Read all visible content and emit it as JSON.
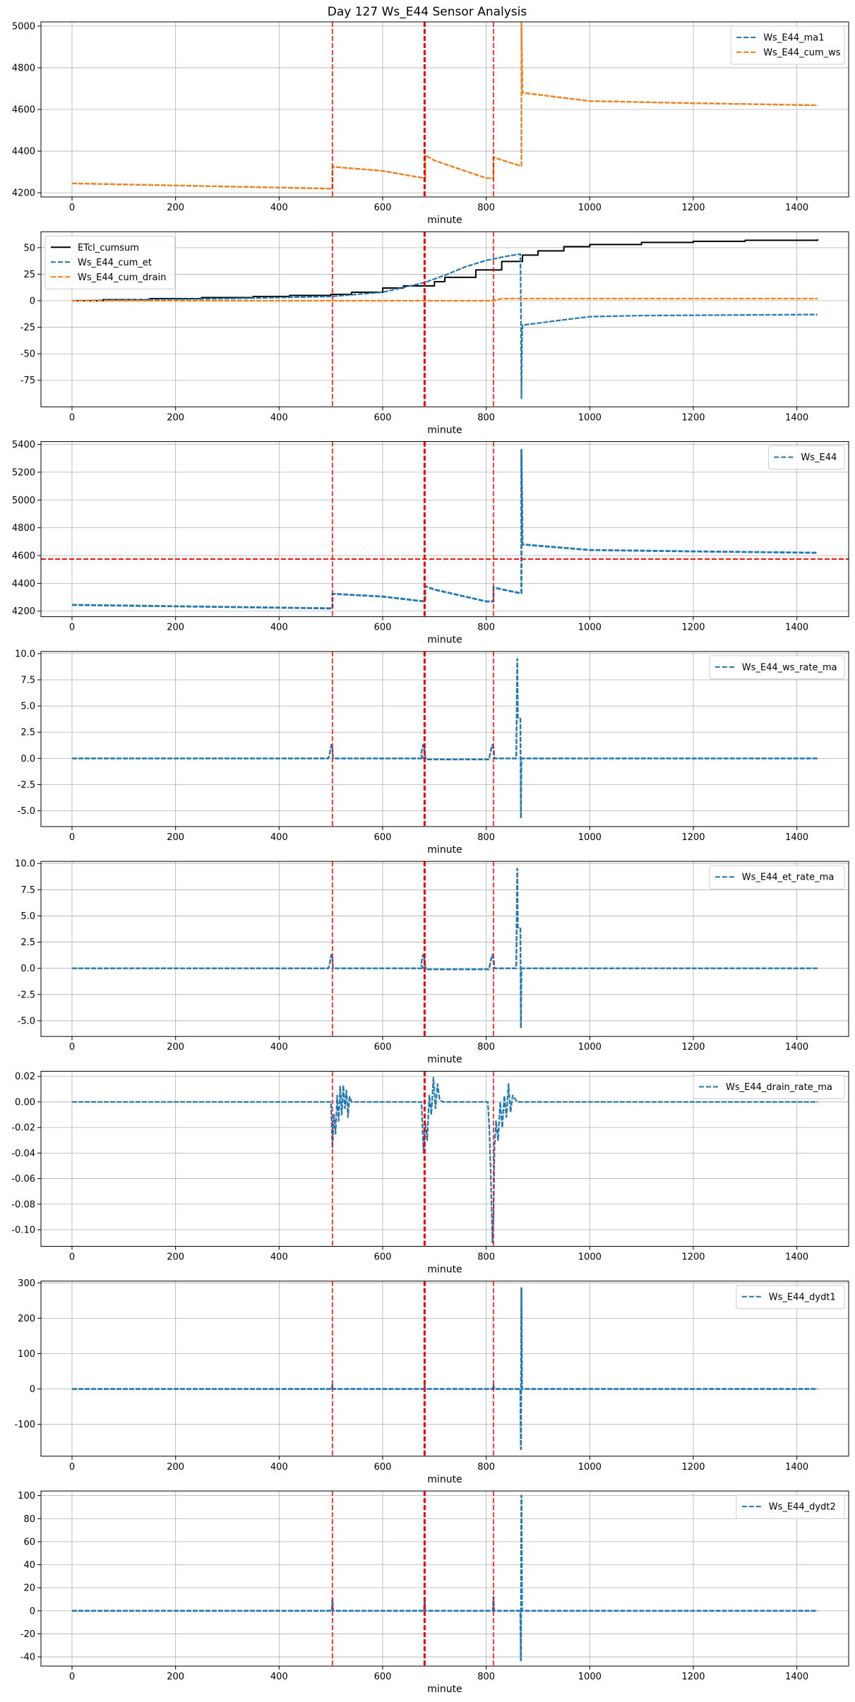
{
  "figure": {
    "title": "Day 127 Ws_E44 Sensor Analysis"
  },
  "colors": {
    "blue": "#1f77b4",
    "orange": "#ff7f0e",
    "black": "#000000",
    "red": "#ff0000",
    "grid": "#b0b0b0"
  },
  "vlines": [
    {
      "x": 503,
      "width": 1.5
    },
    {
      "x": 680,
      "width": 1.5
    },
    {
      "x": 681,
      "width": 1.5
    },
    {
      "x": 682,
      "width": 1.5
    },
    {
      "x": 814,
      "width": 1.5
    }
  ],
  "chart_data": [
    {
      "type": "line",
      "title": "",
      "xlabel": "minute",
      "ylabel": "",
      "xlim": [
        -60,
        1500
      ],
      "ylim": [
        4180,
        5020
      ],
      "xticks": [
        0,
        200,
        400,
        600,
        800,
        1000,
        1200,
        1400
      ],
      "yticks": [
        4200,
        4400,
        4600,
        4800,
        5000
      ],
      "yticklabels": [
        "4200",
        "4400",
        "4600",
        "4800",
        "5000"
      ],
      "legend": "top-right",
      "series": [
        {
          "name": "Ws_E44_ma1",
          "color": "blue",
          "dashed": true,
          "width": 2.2,
          "x": [
            0,
            200,
            400,
            500,
            503,
            503,
            600,
            680,
            682,
            682,
            700,
            800,
            814,
            814,
            865,
            868,
            868,
            870,
            1000,
            1200,
            1440
          ],
          "y": [
            4245,
            4235,
            4225,
            4220,
            4220,
            4325,
            4305,
            4270,
            4270,
            4380,
            4355,
            4270,
            4270,
            4370,
            4330,
            4330,
            5015,
            4680,
            4640,
            4630,
            4620
          ]
        },
        {
          "name": "Ws_E44_cum_ws",
          "color": "orange",
          "dashed": true,
          "width": 2.2,
          "x": [
            0,
            200,
            400,
            500,
            503,
            503,
            600,
            680,
            682,
            682,
            700,
            800,
            814,
            814,
            865,
            868,
            868,
            870,
            1000,
            1200,
            1440
          ],
          "y": [
            4245,
            4235,
            4225,
            4220,
            4220,
            4325,
            4305,
            4270,
            4270,
            4380,
            4355,
            4270,
            4270,
            4370,
            4330,
            4330,
            5015,
            4680,
            4640,
            4630,
            4620
          ]
        }
      ]
    },
    {
      "type": "line",
      "title": "",
      "xlabel": "minute",
      "ylabel": "",
      "xlim": [
        -60,
        1500
      ],
      "ylim": [
        -100,
        65
      ],
      "xticks": [
        0,
        200,
        400,
        600,
        800,
        1000,
        1200,
        1400
      ],
      "yticks": [
        -75,
        -50,
        -25,
        0,
        25,
        50
      ],
      "yticklabels": [
        "-75",
        "-50",
        "-25",
        "0",
        "25",
        "50"
      ],
      "legend": "top-left",
      "series": [
        {
          "name": "ETcl_cumsum",
          "color": "black",
          "dashed": false,
          "width": 2,
          "step": true,
          "x": [
            0,
            60,
            150,
            250,
            350,
            420,
            500,
            540,
            600,
            640,
            700,
            720,
            780,
            830,
            870,
            900,
            950,
            1000,
            1100,
            1200,
            1300,
            1440
          ],
          "y": [
            0,
            1,
            2,
            3,
            4,
            5,
            6,
            8,
            12,
            14,
            18,
            22,
            29,
            37,
            43,
            47,
            51,
            53,
            55,
            56,
            57,
            58
          ]
        },
        {
          "name": "Ws_E44_cum_et",
          "color": "blue",
          "dashed": true,
          "width": 2.2,
          "x": [
            0,
            300,
            500,
            600,
            680,
            720,
            760,
            800,
            840,
            866,
            867,
            868,
            869,
            870,
            950,
            1000,
            1100,
            1440
          ],
          "y": [
            0,
            2,
            4,
            8,
            17,
            24,
            32,
            38,
            42,
            44,
            -5,
            -92,
            -40,
            -23,
            -18,
            -15,
            -14,
            -13
          ]
        },
        {
          "name": "Ws_E44_cum_drain",
          "color": "orange",
          "dashed": true,
          "width": 2.2,
          "x": [
            0,
            500,
            700,
            814,
            830,
            870,
            1440
          ],
          "y": [
            0,
            0,
            0,
            0,
            2,
            2,
            2
          ]
        }
      ]
    },
    {
      "type": "line",
      "title": "",
      "xlabel": "minute",
      "ylabel": "",
      "xlim": [
        -60,
        1500
      ],
      "ylim": [
        4160,
        5420
      ],
      "xticks": [
        0,
        200,
        400,
        600,
        800,
        1000,
        1200,
        1400
      ],
      "yticks": [
        4200,
        4400,
        4600,
        4800,
        5000,
        5200,
        5400
      ],
      "yticklabels": [
        "4200",
        "4400",
        "4600",
        "4800",
        "5000",
        "5200",
        "5400"
      ],
      "hline": 4575,
      "legend": "top-right",
      "series": [
        {
          "name": "Ws_E44",
          "color": "blue",
          "dashed": true,
          "width": 2.8,
          "x": [
            0,
            200,
            400,
            500,
            503,
            503,
            600,
            680,
            682,
            682,
            700,
            800,
            814,
            814,
            865,
            868,
            868,
            870,
            1000,
            1200,
            1440
          ],
          "y": [
            4245,
            4235,
            4225,
            4220,
            4220,
            4325,
            4305,
            4270,
            4270,
            4380,
            4355,
            4270,
            4270,
            4370,
            4330,
            4330,
            5360,
            4680,
            4640,
            4630,
            4620
          ]
        }
      ]
    },
    {
      "type": "line",
      "title": "",
      "xlabel": "minute",
      "ylabel": "",
      "xlim": [
        -60,
        1500
      ],
      "ylim": [
        -6.5,
        10.2
      ],
      "xticks": [
        0,
        200,
        400,
        600,
        800,
        1000,
        1200,
        1400
      ],
      "yticks": [
        -5.0,
        -2.5,
        0.0,
        2.5,
        5.0,
        7.5,
        10.0
      ],
      "yticklabels": [
        "-5.0",
        "-2.5",
        "0.0",
        "2.5",
        "5.0",
        "7.5",
        "10.0"
      ],
      "legend": "top-right",
      "series": [
        {
          "name": "Ws_E44_ws_rate_ma",
          "color": "blue",
          "dashed": true,
          "width": 2.4,
          "x": [
            0,
            495,
            497,
            499,
            501,
            503,
            504,
            680,
            674,
            676,
            678,
            680,
            683,
            805,
            808,
            810,
            812,
            814,
            816,
            858,
            860,
            861,
            862,
            864,
            866,
            867,
            868,
            1440
          ],
          "y": [
            0,
            0,
            0.3,
            0.8,
            1.3,
            1.0,
            0,
            0,
            0.3,
            0.8,
            1.3,
            1.0,
            -0.1,
            -0.1,
            0.5,
            1.0,
            1.3,
            1.0,
            0,
            0,
            9.5,
            4,
            3.8,
            3.8,
            3.8,
            -5.7,
            0,
            0
          ]
        }
      ]
    },
    {
      "type": "line",
      "title": "",
      "xlabel": "minute",
      "ylabel": "",
      "xlim": [
        -60,
        1500
      ],
      "ylim": [
        -6.5,
        10.2
      ],
      "xticks": [
        0,
        200,
        400,
        600,
        800,
        1000,
        1200,
        1400
      ],
      "yticks": [
        -5.0,
        -2.5,
        0.0,
        2.5,
        5.0,
        7.5,
        10.0
      ],
      "yticklabels": [
        "-5.0",
        "-2.5",
        "0.0",
        "2.5",
        "5.0",
        "7.5",
        "10.0"
      ],
      "legend": "top-right",
      "series": [
        {
          "name": "Ws_E44_et_rate_ma",
          "color": "blue",
          "dashed": true,
          "width": 2.4,
          "x": [
            0,
            495,
            497,
            499,
            501,
            503,
            504,
            680,
            674,
            676,
            678,
            680,
            683,
            805,
            808,
            810,
            812,
            814,
            816,
            858,
            860,
            861,
            862,
            864,
            866,
            867,
            868,
            1440
          ],
          "y": [
            0,
            0,
            0.3,
            0.8,
            1.3,
            1.0,
            0,
            0,
            0.3,
            0.8,
            1.3,
            1.0,
            -0.1,
            -0.1,
            0.5,
            1.0,
            1.3,
            1.0,
            0,
            0,
            9.5,
            4,
            3.8,
            3.8,
            3.8,
            -5.7,
            0,
            0
          ]
        }
      ]
    },
    {
      "type": "line",
      "title": "",
      "xlabel": "minute",
      "ylabel": "",
      "xlim": [
        -60,
        1500
      ],
      "ylim": [
        -0.113,
        0.024
      ],
      "xticks": [
        0,
        200,
        400,
        600,
        800,
        1000,
        1200,
        1400
      ],
      "yticks": [
        -0.1,
        -0.08,
        -0.06,
        -0.04,
        -0.02,
        0.0,
        0.02
      ],
      "yticklabels": [
        "-0.10",
        "-0.08",
        "-0.06",
        "-0.04",
        "-0.02",
        "0.00",
        "0.02"
      ],
      "legend": "top-right",
      "series": [
        {
          "name": "Ws_E44_drain_rate_ma",
          "color": "blue",
          "dashed": true,
          "width": 2.2,
          "x": [
            0,
            500,
            503,
            506,
            509,
            512,
            515,
            518,
            521,
            524,
            527,
            530,
            533,
            536,
            540,
            675,
            679,
            682,
            686,
            690,
            694,
            698,
            702,
            706,
            710,
            716,
            803,
            806,
            809,
            812,
            814,
            816,
            819,
            823,
            827,
            831,
            835,
            839,
            843,
            847,
            851,
            860,
            870,
            880,
            1440
          ],
          "y": [
            0,
            0,
            -0.036,
            -0.01,
            -0.025,
            0.005,
            -0.015,
            0.012,
            -0.01,
            0.013,
            -0.005,
            0.009,
            -0.012,
            0.004,
            0,
            0,
            -0.04,
            -0.015,
            -0.03,
            0.005,
            -0.01,
            0.019,
            -0.005,
            0.014,
            0.002,
            0,
            0,
            -0.02,
            -0.06,
            -0.11,
            -0.09,
            -0.035,
            -0.015,
            -0.03,
            0,
            -0.02,
            0.005,
            -0.012,
            0.014,
            -0.008,
            0.005,
            0,
            0,
            0,
            0
          ]
        }
      ]
    },
    {
      "type": "line",
      "title": "",
      "xlabel": "minute",
      "ylabel": "",
      "xlim": [
        -60,
        1500
      ],
      "ylim": [
        -190,
        305
      ],
      "xticks": [
        0,
        200,
        400,
        600,
        800,
        1000,
        1200,
        1400
      ],
      "yticks": [
        -100,
        0,
        100,
        200,
        300
      ],
      "yticklabels": [
        "-100",
        "0",
        "100",
        "200",
        "300"
      ],
      "legend": "top-right",
      "series": [
        {
          "name": "Ws_E44_dydt1",
          "color": "blue",
          "dashed": true,
          "width": 2.6,
          "x": [
            0,
            502,
            503,
            504,
            680,
            681,
            682,
            813,
            814,
            815,
            866,
            867,
            868,
            869,
            870,
            1440
          ],
          "y": [
            0,
            0,
            12,
            0,
            0,
            10,
            0,
            0,
            12,
            0,
            0,
            -170,
            285,
            0,
            0,
            0
          ]
        }
      ]
    },
    {
      "type": "line",
      "title": "",
      "xlabel": "minute",
      "ylabel": "",
      "xlim": [
        -60,
        1500
      ],
      "ylim": [
        -48,
        104
      ],
      "xticks": [
        0,
        200,
        400,
        600,
        800,
        1000,
        1200,
        1400
      ],
      "yticks": [
        -40,
        -20,
        0,
        20,
        40,
        60,
        80,
        100
      ],
      "yticklabels": [
        "-40",
        "-20",
        "0",
        "20",
        "40",
        "60",
        "80",
        "100"
      ],
      "legend": "top-right",
      "series": [
        {
          "name": "Ws_E44_dydt2",
          "color": "blue",
          "dashed": true,
          "width": 2.6,
          "x": [
            0,
            502,
            503,
            504,
            680,
            681,
            682,
            813,
            814,
            815,
            866,
            867,
            868,
            869,
            870,
            1440
          ],
          "y": [
            0,
            0,
            10,
            0,
            0,
            10,
            0,
            0,
            12,
            0,
            0,
            -43,
            100,
            0,
            0,
            0
          ]
        }
      ]
    }
  ]
}
